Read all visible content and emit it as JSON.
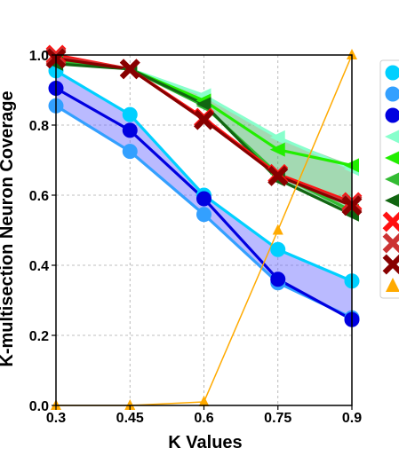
{
  "chart_data": {
    "type": "line",
    "xlabel": "K Values",
    "ylabel": "K-multisection Neuron Coverage",
    "x": [
      0.3,
      0.45,
      0.6,
      0.75,
      0.9
    ],
    "x_tick_labels": [
      "0.3",
      "0.45",
      "0.6",
      "0.75",
      "0.9"
    ],
    "ylim": [
      0.0,
      1.0
    ],
    "y_ticks": [
      "0.0",
      "0.2",
      "0.4",
      "0.6",
      "0.8",
      "1.0"
    ],
    "grid": true,
    "legend_position": "right, partially cut off",
    "bands": [
      {
        "color": "#6666ff",
        "lower": [
          0.855,
          0.725,
          0.545,
          0.35,
          0.245
        ],
        "upper": [
          0.955,
          0.83,
          0.6,
          0.445,
          0.355
        ]
      },
      {
        "color": "#33aa55",
        "lower": [
          0.975,
          0.96,
          0.855,
          0.645,
          0.545
        ],
        "upper": [
          1.0,
          0.96,
          0.885,
          0.765,
          0.685
        ]
      }
    ],
    "series": [
      {
        "color": "#00d0ff",
        "marker": "circle",
        "values": [
          0.955,
          0.83,
          0.6,
          0.445,
          0.355
        ]
      },
      {
        "color": "#33a0ff",
        "marker": "circle",
        "values": [
          0.855,
          0.725,
          0.545,
          0.35,
          0.25
        ]
      },
      {
        "color": "#0000e0",
        "marker": "circle",
        "values": [
          0.905,
          0.785,
          0.59,
          0.36,
          0.245
        ]
      },
      {
        "color": "#88ffcc",
        "marker": "triangle-left",
        "values": [
          0.99,
          0.96,
          0.885,
          0.765,
          0.675
        ]
      },
      {
        "color": "#22ee00",
        "marker": "triangle-left",
        "values": [
          0.985,
          0.96,
          0.87,
          0.73,
          0.685
        ]
      },
      {
        "color": "#33bb33",
        "marker": "triangle-left",
        "values": [
          0.98,
          0.96,
          0.855,
          0.66,
          0.555
        ]
      },
      {
        "color": "#116611",
        "marker": "triangle-left",
        "values": [
          0.975,
          0.96,
          0.86,
          0.645,
          0.545
        ]
      },
      {
        "color": "#ff1111",
        "marker": "x-thick",
        "values": [
          1.0,
          0.96,
          0.82,
          0.66,
          0.58
        ]
      },
      {
        "color": "#cc3333",
        "marker": "x-thick",
        "values": [
          0.995,
          0.96,
          0.815,
          0.655,
          0.575
        ]
      },
      {
        "color": "#880000",
        "marker": "x-thick",
        "values": [
          0.99,
          0.96,
          0.815,
          0.655,
          0.57
        ]
      },
      {
        "color": "#ffaa00",
        "marker": "triangle-up",
        "values": [
          0.0,
          0.0,
          0.01,
          0.5,
          1.0
        ]
      }
    ]
  }
}
